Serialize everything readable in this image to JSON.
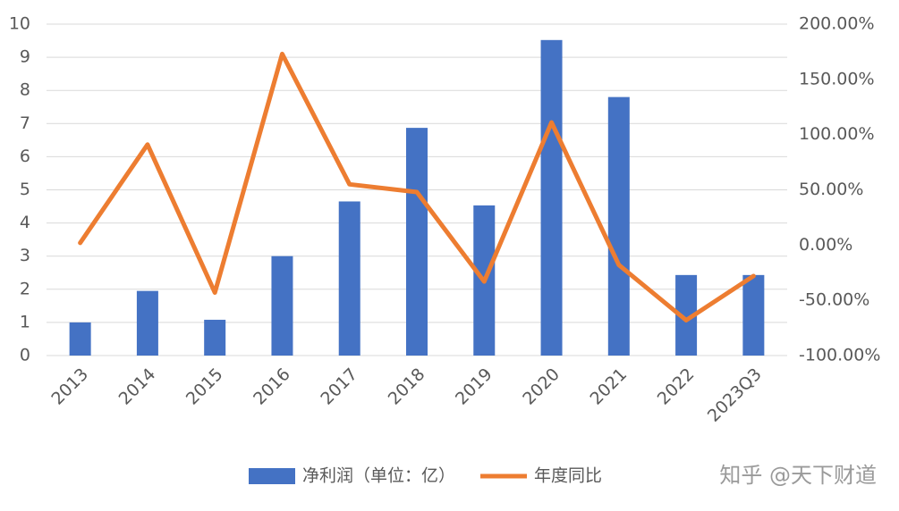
{
  "chart_data": {
    "type": "bar-line",
    "categories": [
      "2013",
      "2014",
      "2015",
      "2016",
      "2017",
      "2018",
      "2019",
      "2020",
      "2021",
      "2022",
      "2023Q3"
    ],
    "series": [
      {
        "name": "净利润（单位：亿）",
        "type": "bar",
        "color": "#4472c4",
        "values": [
          1.0,
          1.95,
          1.08,
          3.0,
          4.65,
          6.87,
          4.53,
          9.52,
          7.8,
          2.43,
          2.43
        ]
      },
      {
        "name": "年度同比",
        "type": "line",
        "axis": "y2",
        "color": "#ed7d31",
        "values": [
          2,
          91,
          -43,
          173,
          55,
          48,
          -33,
          111,
          -18,
          -68,
          -28
        ]
      }
    ],
    "ylim": [
      0,
      10
    ],
    "yticks": [
      0,
      1,
      2,
      3,
      4,
      5,
      6,
      7,
      8,
      9,
      10
    ],
    "y2lim": [
      -100,
      200
    ],
    "y2ticks": [
      {
        "value": 200,
        "label": "200.00%"
      },
      {
        "value": 150,
        "label": "150.00%"
      },
      {
        "value": 100,
        "label": "100.00%"
      },
      {
        "value": 50,
        "label": "50.00%"
      },
      {
        "value": 0,
        "label": "0.00%"
      },
      {
        "value": -50,
        "label": "-50.00%"
      },
      {
        "value": -100,
        "label": "-100.00%"
      }
    ],
    "grid": true,
    "legend": "bottom",
    "watermark": "知乎 @天下财道"
  }
}
